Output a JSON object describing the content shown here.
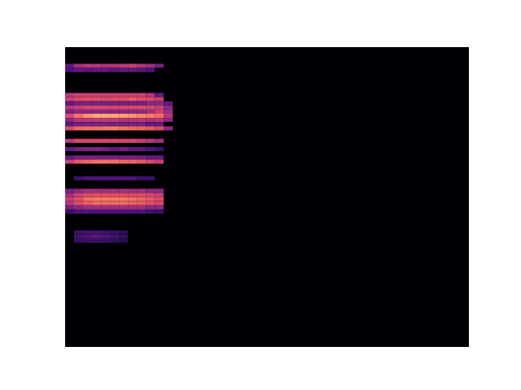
{
  "chart_data": {
    "type": "heatmap",
    "xlim": [
      0,
      45
    ],
    "ylim": [
      0,
      72
    ],
    "zlim": [
      0,
      1
    ],
    "tick_labels": false,
    "cells": [
      {
        "y": 67,
        "values": [
          0.3,
          0.45,
          0.5,
          0.5,
          0.48,
          0.5,
          0.52,
          0.55,
          0.5,
          0.45,
          0.35,
          0
        ]
      },
      {
        "y": 66,
        "values": [
          0.25,
          0.3,
          0.28,
          0.3,
          0.3,
          0.28,
          0.3,
          0.3,
          0.28,
          0.25,
          0,
          0
        ]
      },
      {
        "y": 60,
        "values": [
          0.5,
          0.55,
          0.55,
          0.55,
          0.55,
          0.55,
          0.55,
          0.55,
          0.55,
          0.5,
          0.3,
          0
        ]
      },
      {
        "y": 59,
        "values": [
          0.55,
          0.6,
          0.62,
          0.62,
          0.6,
          0.62,
          0.62,
          0.65,
          0.62,
          0.6,
          0.55,
          0
        ]
      },
      {
        "y": 58,
        "values": [
          0.3,
          0.35,
          0.35,
          0.35,
          0.35,
          0.35,
          0.35,
          0.35,
          0.35,
          0.4,
          0.4,
          0.3
        ]
      },
      {
        "y": 57,
        "values": [
          0.5,
          0.55,
          0.58,
          0.58,
          0.58,
          0.58,
          0.58,
          0.6,
          0.6,
          0.58,
          0.55,
          0.4
        ]
      },
      {
        "y": 56,
        "values": [
          0.35,
          0.4,
          0.4,
          0.4,
          0.4,
          0.4,
          0.4,
          0.4,
          0.4,
          0.45,
          0.55,
          0.45
        ]
      },
      {
        "y": 55,
        "values": [
          0.6,
          0.7,
          0.78,
          0.82,
          0.82,
          0.82,
          0.8,
          0.78,
          0.75,
          0.72,
          0.7,
          0.5
        ]
      },
      {
        "y": 54,
        "values": [
          0.4,
          0.5,
          0.5,
          0.52,
          0.52,
          0.52,
          0.5,
          0.5,
          0.5,
          0.48,
          0.5,
          0.4
        ]
      },
      {
        "y": 53,
        "values": [
          0.3,
          0.35,
          0.35,
          0.35,
          0.35,
          0.35,
          0.35,
          0.35,
          0.35,
          0.3,
          0.3,
          0
        ]
      },
      {
        "y": 52,
        "values": [
          0.6,
          0.68,
          0.7,
          0.7,
          0.72,
          0.72,
          0.7,
          0.68,
          0.68,
          0.65,
          0.6,
          0.4
        ]
      },
      {
        "y": 49,
        "values": [
          0.5,
          0.58,
          0.58,
          0.58,
          0.58,
          0.58,
          0.58,
          0.58,
          0.55,
          0.5,
          0.45,
          0
        ]
      },
      {
        "y": 47,
        "values": [
          0.3,
          0.35,
          0.38,
          0.38,
          0.35,
          0.3,
          0.35,
          0.3,
          0.3,
          0.25,
          0.2,
          0
        ]
      },
      {
        "y": 45,
        "values": [
          0.3,
          0.35,
          0.35,
          0.35,
          0.35,
          0.35,
          0.35,
          0.35,
          0.35,
          0.3,
          0.3,
          0
        ]
      },
      {
        "y": 44,
        "values": [
          0.55,
          0.65,
          0.68,
          0.7,
          0.7,
          0.7,
          0.68,
          0.68,
          0.65,
          0.6,
          0.55,
          0
        ]
      },
      {
        "y": 40,
        "values": [
          0,
          0.2,
          0.25,
          0.25,
          0.25,
          0.25,
          0.25,
          0.25,
          0.2,
          0.2,
          0,
          0
        ]
      },
      {
        "y": 37,
        "values": [
          0.35,
          0.4,
          0.45,
          0.45,
          0.45,
          0.45,
          0.45,
          0.45,
          0.45,
          0.4,
          0.4,
          0
        ]
      },
      {
        "y": 36,
        "values": [
          0.45,
          0.55,
          0.6,
          0.62,
          0.62,
          0.62,
          0.62,
          0.6,
          0.6,
          0.58,
          0.55,
          0
        ]
      },
      {
        "y": 35,
        "values": [
          0.55,
          0.62,
          0.7,
          0.72,
          0.72,
          0.72,
          0.72,
          0.7,
          0.68,
          0.65,
          0.6,
          0
        ]
      },
      {
        "y": 34,
        "values": [
          0.5,
          0.6,
          0.65,
          0.68,
          0.68,
          0.68,
          0.68,
          0.66,
          0.65,
          0.62,
          0.58,
          0
        ]
      },
      {
        "y": 33,
        "values": [
          0.35,
          0.4,
          0.45,
          0.45,
          0.45,
          0.45,
          0.45,
          0.45,
          0.45,
          0.4,
          0.4,
          0
        ]
      },
      {
        "y": 32,
        "values": [
          0.2,
          0.25,
          0.25,
          0.25,
          0.25,
          0.25,
          0.25,
          0.25,
          0.25,
          0.2,
          0.2,
          0
        ]
      },
      {
        "y": 27,
        "values": [
          0,
          0.2,
          0.22,
          0.22,
          0.2,
          0.2,
          0.15,
          0,
          0,
          0,
          0,
          0
        ]
      },
      {
        "y": 26,
        "values": [
          0,
          0.22,
          0.25,
          0.28,
          0.25,
          0.22,
          0.18,
          0,
          0,
          0,
          0,
          0
        ]
      },
      {
        "y": 25,
        "values": [
          0,
          0.18,
          0.2,
          0.2,
          0.2,
          0.18,
          0.15,
          0,
          0,
          0,
          0,
          0
        ]
      }
    ]
  }
}
